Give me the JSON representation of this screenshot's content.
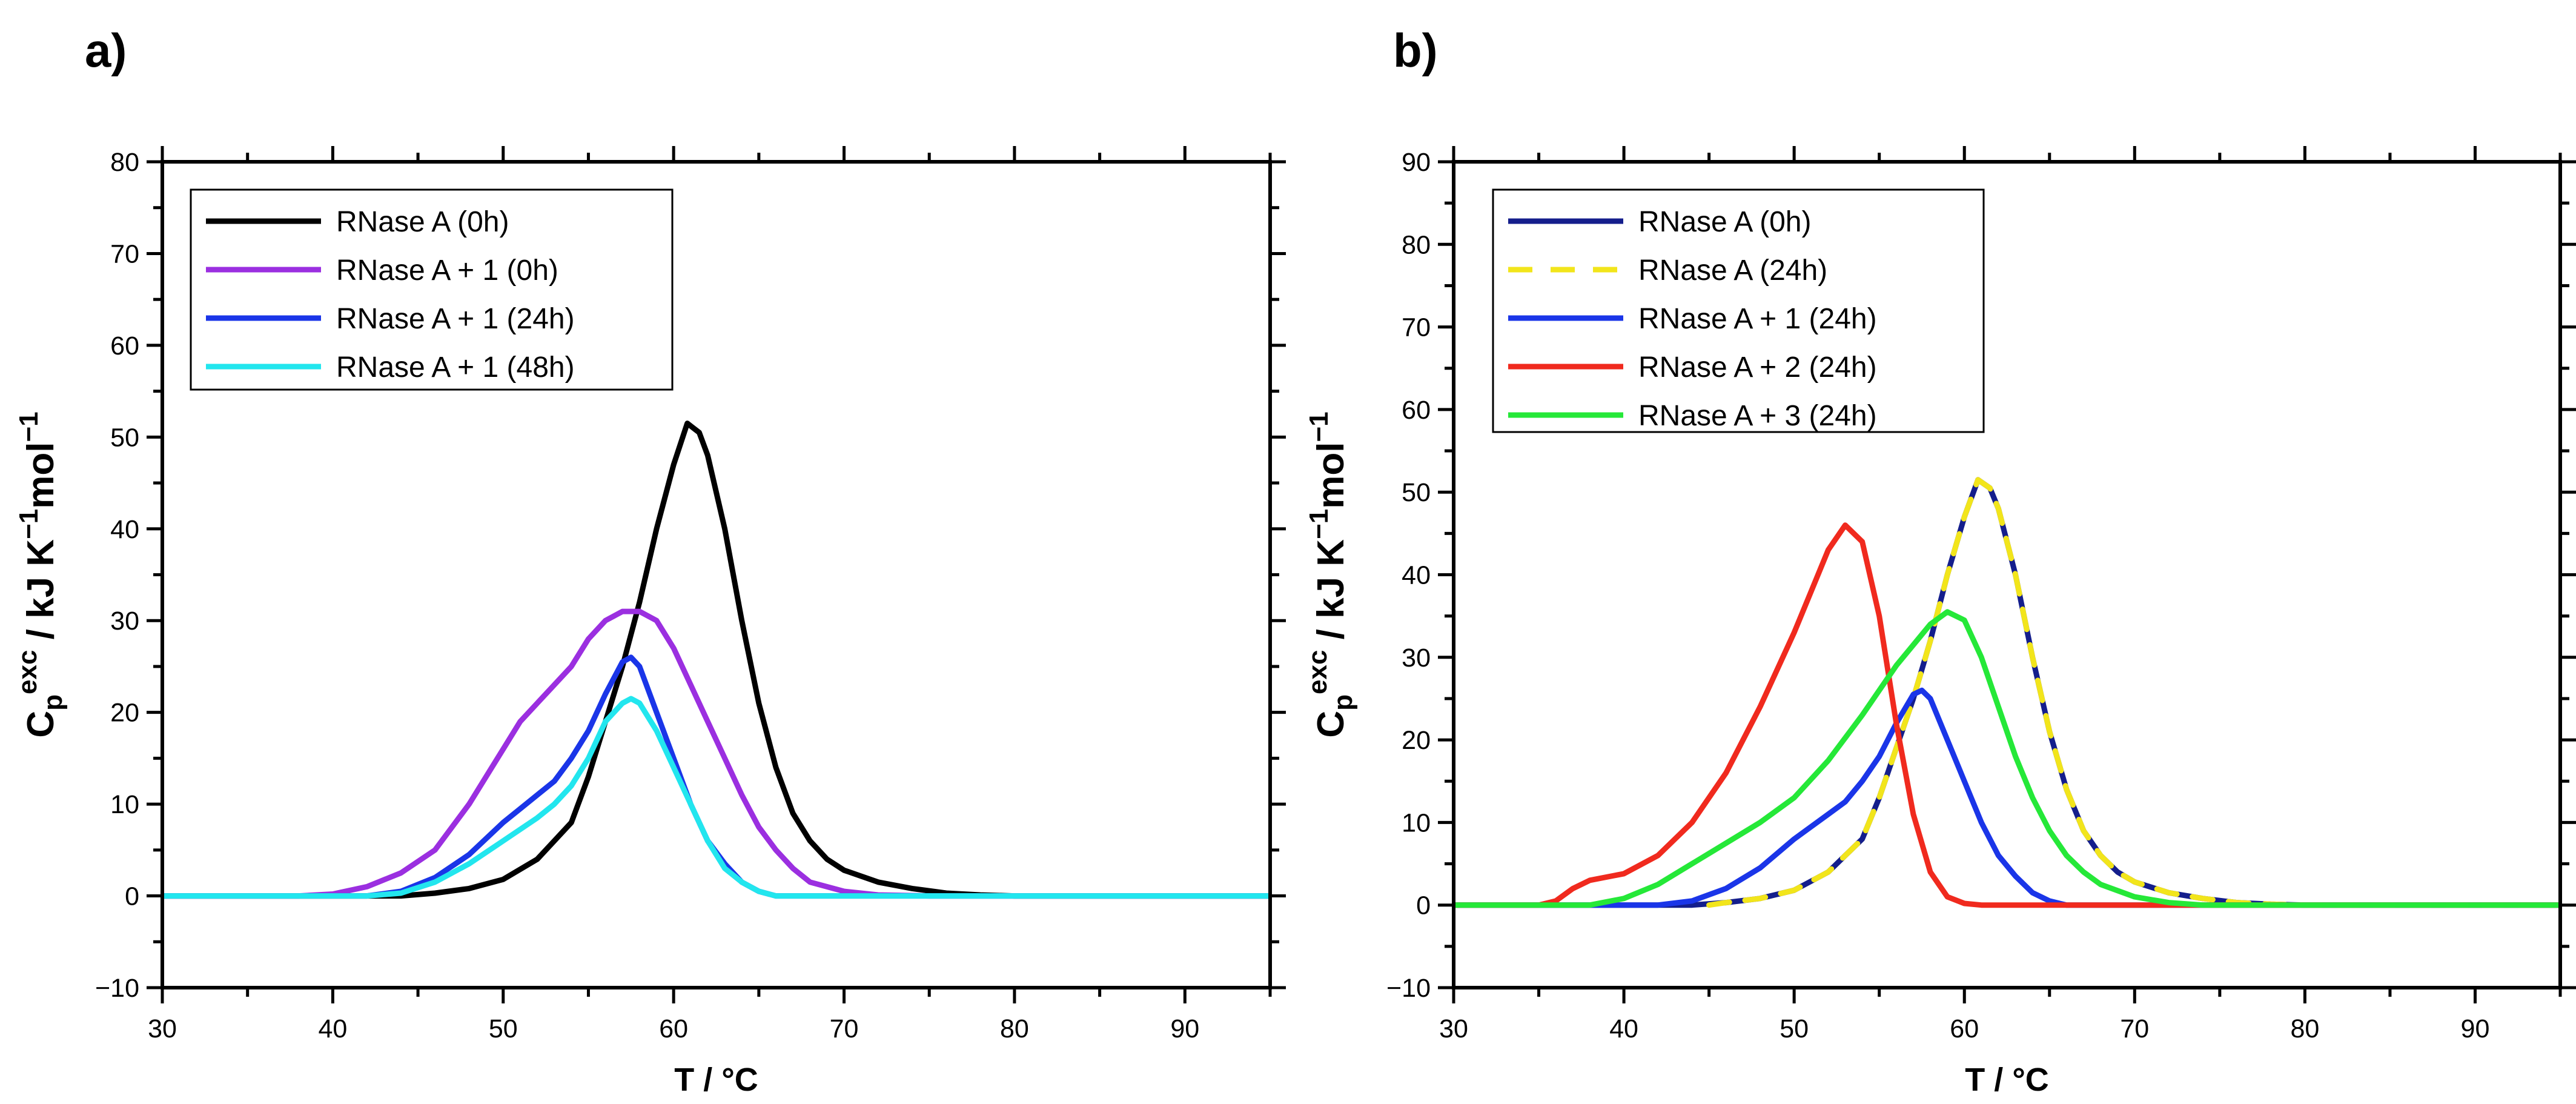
{
  "chart_data": [
    {
      "type": "line",
      "panel_label": "a)",
      "xlabel": "T / °C",
      "ylabel": "C_p^exc / kJ K^-1 mol^-1",
      "ylabel_parts": {
        "main": "C",
        "sub": "p",
        "sup": "exc",
        "rest1": " / kJ K",
        "sup2": "−1",
        "rest2": "mol",
        "sup3": "−1"
      },
      "xlim": [
        30,
        95
      ],
      "ylim": [
        -10,
        80
      ],
      "xticks": [
        30,
        40,
        50,
        60,
        70,
        80,
        90
      ],
      "xtick_labels": [
        "30",
        "40",
        "50",
        "60",
        "70",
        "80",
        "90"
      ],
      "yticks": [
        -10,
        0,
        10,
        20,
        30,
        40,
        50,
        60,
        70,
        80
      ],
      "ytick_labels": [
        "−10",
        "0",
        "10",
        "20",
        "30",
        "40",
        "50",
        "60",
        "70",
        "80"
      ],
      "legend_position": "top-left",
      "series": [
        {
          "name": "RNase A (0h)",
          "color": "#000000",
          "dash": "solid",
          "points": [
            [
              30,
              0
            ],
            [
              40,
              0
            ],
            [
              44,
              0
            ],
            [
              46,
              0.3
            ],
            [
              48,
              0.8
            ],
            [
              50,
              1.8
            ],
            [
              52,
              4
            ],
            [
              53,
              6
            ],
            [
              54,
              8
            ],
            [
              55,
              13
            ],
            [
              56,
              19
            ],
            [
              57,
              25
            ],
            [
              58,
              32
            ],
            [
              59,
              40
            ],
            [
              60,
              47
            ],
            [
              60.8,
              51.5
            ],
            [
              61.5,
              50.5
            ],
            [
              62,
              48
            ],
            [
              63,
              40
            ],
            [
              64,
              30
            ],
            [
              65,
              21
            ],
            [
              66,
              14
            ],
            [
              67,
              9
            ],
            [
              68,
              6
            ],
            [
              69,
              4
            ],
            [
              70,
              2.8
            ],
            [
              72,
              1.5
            ],
            [
              74,
              0.8
            ],
            [
              76,
              0.3
            ],
            [
              78,
              0.1
            ],
            [
              80,
              0
            ],
            [
              95,
              0
            ]
          ]
        },
        {
          "name": "RNase A  + 1 (0h)",
          "color": "#9b2fe0",
          "dash": "solid",
          "points": [
            [
              30,
              0
            ],
            [
              38,
              0
            ],
            [
              40,
              0.2
            ],
            [
              42,
              1
            ],
            [
              44,
              2.5
            ],
            [
              46,
              5
            ],
            [
              48,
              10
            ],
            [
              50,
              16
            ],
            [
              51,
              19
            ],
            [
              52,
              21
            ],
            [
              53,
              23
            ],
            [
              54,
              25
            ],
            [
              55,
              28
            ],
            [
              56,
              30
            ],
            [
              57,
              31
            ],
            [
              58,
              31
            ],
            [
              59,
              30
            ],
            [
              60,
              27
            ],
            [
              61,
              23
            ],
            [
              62,
              19
            ],
            [
              63,
              15
            ],
            [
              64,
              11
            ],
            [
              65,
              7.5
            ],
            [
              66,
              5
            ],
            [
              67,
              3
            ],
            [
              68,
              1.5
            ],
            [
              70,
              0.5
            ],
            [
              72,
              0.1
            ],
            [
              75,
              0
            ],
            [
              95,
              0
            ]
          ]
        },
        {
          "name": "RNase A  + 1 (24h)",
          "color": "#1a35e8",
          "dash": "solid",
          "points": [
            [
              30,
              0
            ],
            [
              42,
              0
            ],
            [
              44,
              0.5
            ],
            [
              46,
              2
            ],
            [
              48,
              4.5
            ],
            [
              50,
              8
            ],
            [
              51,
              9.5
            ],
            [
              52,
              11
            ],
            [
              53,
              12.5
            ],
            [
              54,
              15
            ],
            [
              55,
              18
            ],
            [
              56,
              22
            ],
            [
              57,
              25.5
            ],
            [
              57.5,
              26
            ],
            [
              58,
              25
            ],
            [
              59,
              20
            ],
            [
              60,
              15
            ],
            [
              61,
              10
            ],
            [
              62,
              6
            ],
            [
              63,
              3.5
            ],
            [
              64,
              1.5
            ],
            [
              65,
              0.5
            ],
            [
              66,
              0
            ],
            [
              95,
              0
            ]
          ]
        },
        {
          "name": "RNase A  + 1 (48h)",
          "color": "#22e6ee",
          "dash": "solid",
          "points": [
            [
              30,
              0
            ],
            [
              42,
              0
            ],
            [
              44,
              0.3
            ],
            [
              46,
              1.5
            ],
            [
              48,
              3.5
            ],
            [
              50,
              6
            ],
            [
              52,
              8.5
            ],
            [
              53,
              10
            ],
            [
              54,
              12
            ],
            [
              55,
              15
            ],
            [
              56,
              19
            ],
            [
              57,
              21
            ],
            [
              57.5,
              21.5
            ],
            [
              58,
              21
            ],
            [
              59,
              18
            ],
            [
              60,
              14
            ],
            [
              61,
              10
            ],
            [
              62,
              6
            ],
            [
              63,
              3
            ],
            [
              64,
              1.5
            ],
            [
              65,
              0.5
            ],
            [
              66,
              0
            ],
            [
              95,
              0
            ]
          ]
        }
      ]
    },
    {
      "type": "line",
      "panel_label": "b)",
      "xlabel": "T / °C",
      "ylabel": "C_p^exc / kJ K^-1 mol^-1",
      "ylabel_parts": {
        "main": "C",
        "sub": "p",
        "sup": "exc",
        "rest1": " / kJ K",
        "sup2": "−1",
        "rest2": "mol",
        "sup3": "−1"
      },
      "xlim": [
        30,
        95
      ],
      "ylim": [
        -10,
        90
      ],
      "xticks": [
        30,
        40,
        50,
        60,
        70,
        80,
        90
      ],
      "xtick_labels": [
        "30",
        "40",
        "50",
        "60",
        "70",
        "80",
        "90"
      ],
      "yticks": [
        -10,
        0,
        10,
        20,
        30,
        40,
        50,
        60,
        70,
        80,
        90
      ],
      "ytick_labels": [
        "−10",
        "0",
        "10",
        "20",
        "30",
        "40",
        "50",
        "60",
        "70",
        "80",
        "90"
      ],
      "legend_position": "top-left",
      "series": [
        {
          "name": "RNase A (0h)",
          "color": "#141e8c",
          "dash": "solid",
          "points": [
            [
              30,
              0
            ],
            [
              40,
              0
            ],
            [
              44,
              0
            ],
            [
              46,
              0.3
            ],
            [
              48,
              0.8
            ],
            [
              50,
              1.8
            ],
            [
              52,
              4
            ],
            [
              53,
              6
            ],
            [
              54,
              8
            ],
            [
              55,
              13
            ],
            [
              56,
              19
            ],
            [
              57,
              25
            ],
            [
              58,
              32
            ],
            [
              59,
              40
            ],
            [
              60,
              47
            ],
            [
              60.8,
              51.5
            ],
            [
              61.5,
              50.5
            ],
            [
              62,
              48
            ],
            [
              63,
              40
            ],
            [
              64,
              30
            ],
            [
              65,
              21
            ],
            [
              66,
              14
            ],
            [
              67,
              9
            ],
            [
              68,
              6
            ],
            [
              69,
              4
            ],
            [
              70,
              2.8
            ],
            [
              72,
              1.5
            ],
            [
              74,
              0.8
            ],
            [
              76,
              0.3
            ],
            [
              78,
              0.1
            ],
            [
              80,
              0
            ],
            [
              95,
              0
            ]
          ]
        },
        {
          "name": "RNase A (24h)",
          "color": "#f2e51b",
          "dash": "dashed",
          "points": [
            [
              45,
              0
            ],
            [
              46,
              0.3
            ],
            [
              48,
              0.8
            ],
            [
              50,
              1.8
            ],
            [
              52,
              4
            ],
            [
              53,
              6
            ],
            [
              54,
              8
            ],
            [
              55,
              13
            ],
            [
              56,
              19
            ],
            [
              57,
              25
            ],
            [
              58,
              32
            ],
            [
              59,
              40
            ],
            [
              60,
              47
            ],
            [
              60.8,
              51.5
            ],
            [
              61.5,
              50.5
            ],
            [
              62,
              48
            ],
            [
              63,
              40
            ],
            [
              64,
              30
            ],
            [
              65,
              21
            ],
            [
              66,
              14
            ],
            [
              67,
              9
            ],
            [
              68,
              6
            ],
            [
              69,
              4
            ],
            [
              70,
              2.8
            ],
            [
              72,
              1.5
            ],
            [
              74,
              0.8
            ],
            [
              76,
              0.3
            ],
            [
              78,
              0.1
            ],
            [
              80,
              0
            ],
            [
              95,
              0
            ]
          ]
        },
        {
          "name": "RNase A  + 1 (24h)",
          "color": "#1a35e8",
          "dash": "solid",
          "points": [
            [
              30,
              0
            ],
            [
              42,
              0
            ],
            [
              44,
              0.5
            ],
            [
              46,
              2
            ],
            [
              48,
              4.5
            ],
            [
              50,
              8
            ],
            [
              51,
              9.5
            ],
            [
              52,
              11
            ],
            [
              53,
              12.5
            ],
            [
              54,
              15
            ],
            [
              55,
              18
            ],
            [
              56,
              22
            ],
            [
              57,
              25.5
            ],
            [
              57.5,
              26
            ],
            [
              58,
              25
            ],
            [
              59,
              20
            ],
            [
              60,
              15
            ],
            [
              61,
              10
            ],
            [
              62,
              6
            ],
            [
              63,
              3.5
            ],
            [
              64,
              1.5
            ],
            [
              65,
              0.5
            ],
            [
              66,
              0
            ],
            [
              95,
              0
            ]
          ]
        },
        {
          "name": "RNase A  + 2 (24h)",
          "color": "#f02a1e",
          "dash": "solid",
          "points": [
            [
              30,
              0
            ],
            [
              35,
              0
            ],
            [
              36,
              0.5
            ],
            [
              37,
              2
            ],
            [
              38,
              3
            ],
            [
              40,
              3.8
            ],
            [
              42,
              6
            ],
            [
              44,
              10
            ],
            [
              46,
              16
            ],
            [
              48,
              24
            ],
            [
              50,
              33
            ],
            [
              51,
              38
            ],
            [
              52,
              43
            ],
            [
              53,
              46
            ],
            [
              54,
              44
            ],
            [
              55,
              35
            ],
            [
              56,
              22
            ],
            [
              57,
              11
            ],
            [
              58,
              4
            ],
            [
              59,
              1
            ],
            [
              60,
              0.2
            ],
            [
              61,
              0
            ],
            [
              95,
              0
            ]
          ]
        },
        {
          "name": "RNase A  + 3 (24h)",
          "color": "#25e838",
          "dash": "solid",
          "points": [
            [
              30,
              0
            ],
            [
              38,
              0
            ],
            [
              40,
              0.8
            ],
            [
              42,
              2.5
            ],
            [
              44,
              5
            ],
            [
              46,
              7.5
            ],
            [
              48,
              10
            ],
            [
              50,
              13
            ],
            [
              52,
              17.5
            ],
            [
              54,
              23
            ],
            [
              56,
              29
            ],
            [
              58,
              34
            ],
            [
              59,
              35.5
            ],
            [
              60,
              34.5
            ],
            [
              61,
              30
            ],
            [
              62,
              24
            ],
            [
              63,
              18
            ],
            [
              64,
              13
            ],
            [
              65,
              9
            ],
            [
              66,
              6
            ],
            [
              67,
              4
            ],
            [
              68,
              2.5
            ],
            [
              70,
              1
            ],
            [
              72,
              0.3
            ],
            [
              74,
              0
            ],
            [
              95,
              0
            ]
          ]
        }
      ]
    }
  ]
}
